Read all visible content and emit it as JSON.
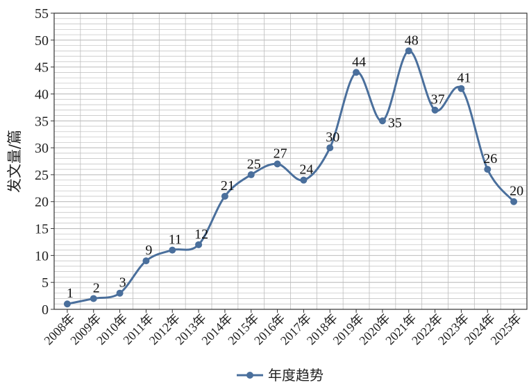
{
  "chart_data": {
    "type": "line",
    "title": "",
    "xlabel": "",
    "ylabel": "发文量/篇",
    "categories": [
      "2008年",
      "2009年",
      "2010年",
      "2011年",
      "2012年",
      "2013年",
      "2014年",
      "2015年",
      "2016年",
      "2017年",
      "2018年",
      "2019年",
      "2020年",
      "2021年",
      "2022年",
      "2023年",
      "2024年",
      "2025年"
    ],
    "series": [
      {
        "name": "年度趋势",
        "values": [
          1,
          2,
          3,
          9,
          11,
          12,
          21,
          25,
          27,
          24,
          30,
          44,
          35,
          48,
          37,
          41,
          26,
          20
        ]
      }
    ],
    "ylim": [
      0,
      55
    ],
    "yticks": [
      0,
      5,
      10,
      15,
      20,
      25,
      30,
      35,
      40,
      45,
      50,
      55
    ],
    "grid": true,
    "legend_position": "bottom",
    "line_color": "#4a6f9c",
    "marker_color": "#4a6f9c",
    "grid_color": "#bdbdbd",
    "data_labels": [
      "1",
      "2",
      "3",
      "9",
      "11",
      "12",
      "21",
      "25",
      "27",
      "24",
      "30",
      "44",
      "35",
      "48",
      "37",
      "41",
      "26",
      "20"
    ]
  }
}
